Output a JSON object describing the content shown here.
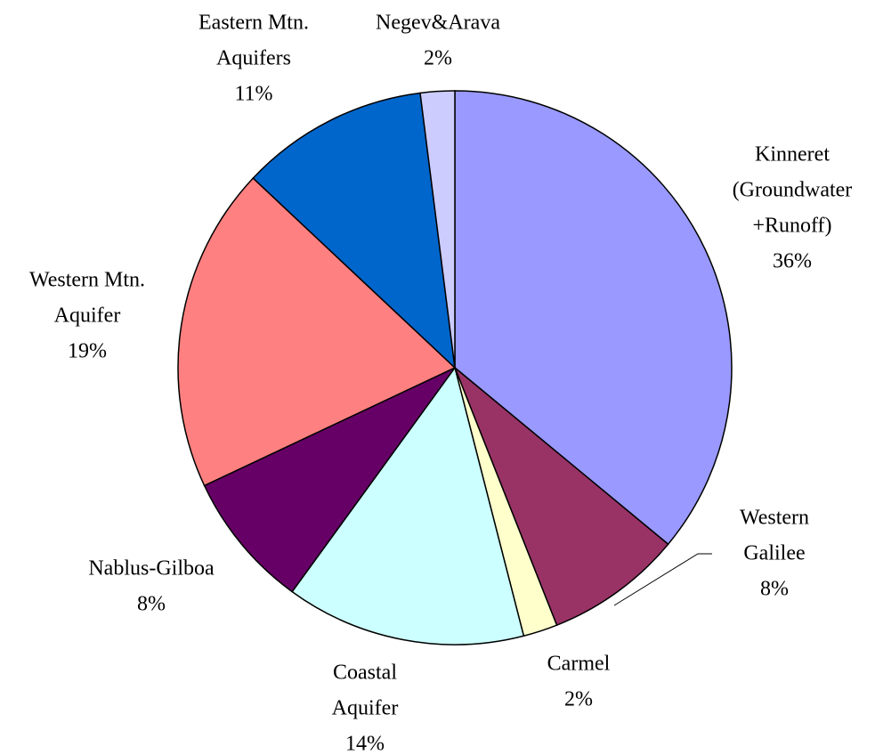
{
  "chart_data": {
    "type": "pie",
    "categories": [
      [
        "Kinneret",
        "(Groundwater",
        "+Runoff)"
      ],
      [
        "Western",
        "Galilee"
      ],
      [
        "Carmel"
      ],
      [
        "Coastal",
        "Aquifer"
      ],
      [
        "Nablus-Gilboa"
      ],
      [
        "Western Mtn.",
        "Aquifer"
      ],
      [
        "Eastern Mtn.",
        "Aquifers"
      ],
      [
        "Negev&Arava"
      ]
    ],
    "values": [
      36,
      8,
      2,
      14,
      8,
      19,
      11,
      2
    ],
    "value_labels": [
      "36%",
      "8%",
      "2%",
      "14%",
      "8%",
      "19%",
      "11%",
      "2%"
    ],
    "colors": [
      "#9999ff",
      "#993366",
      "#ffffcc",
      "#ccffff",
      "#660066",
      "#ff8080",
      "#0066cc",
      "#ccccff"
    ]
  }
}
